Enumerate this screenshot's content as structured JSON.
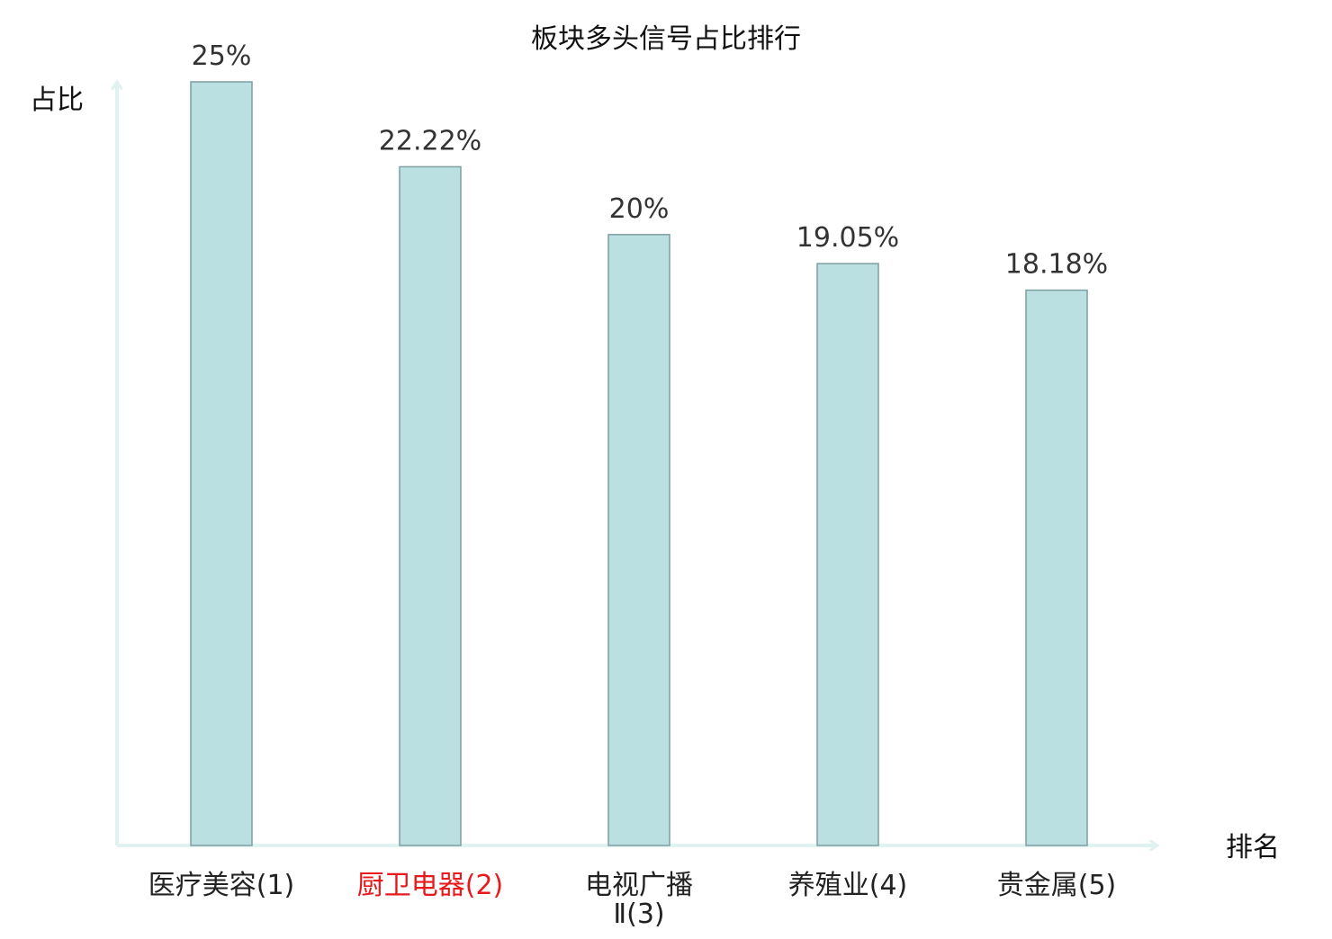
{
  "chart_data": {
    "type": "bar",
    "title": "板块多头信号占比排行",
    "xlabel": "排名",
    "ylabel": "占比",
    "categories": [
      [
        "医疗美容(1)"
      ],
      [
        "厨卫电器(2)"
      ],
      [
        "电视广播",
        "Ⅱ(3)"
      ],
      [
        "养殖业(4)"
      ],
      [
        "贵金属(5)"
      ]
    ],
    "values": [
      25,
      22.22,
      20,
      19.05,
      18.18
    ],
    "value_labels": [
      "25%",
      "22.22%",
      "20%",
      "19.05%",
      "18.18%"
    ],
    "highlight_index": 1,
    "ylim": [
      0,
      25
    ],
    "grid": false,
    "colors": {
      "bar_fill": "#bbe0e2",
      "bar_stroke": "#7f9ea1",
      "axis": "#e0f2ef",
      "text": "#333333",
      "category_text": "#222222",
      "highlight_text": "#e8191b"
    }
  }
}
